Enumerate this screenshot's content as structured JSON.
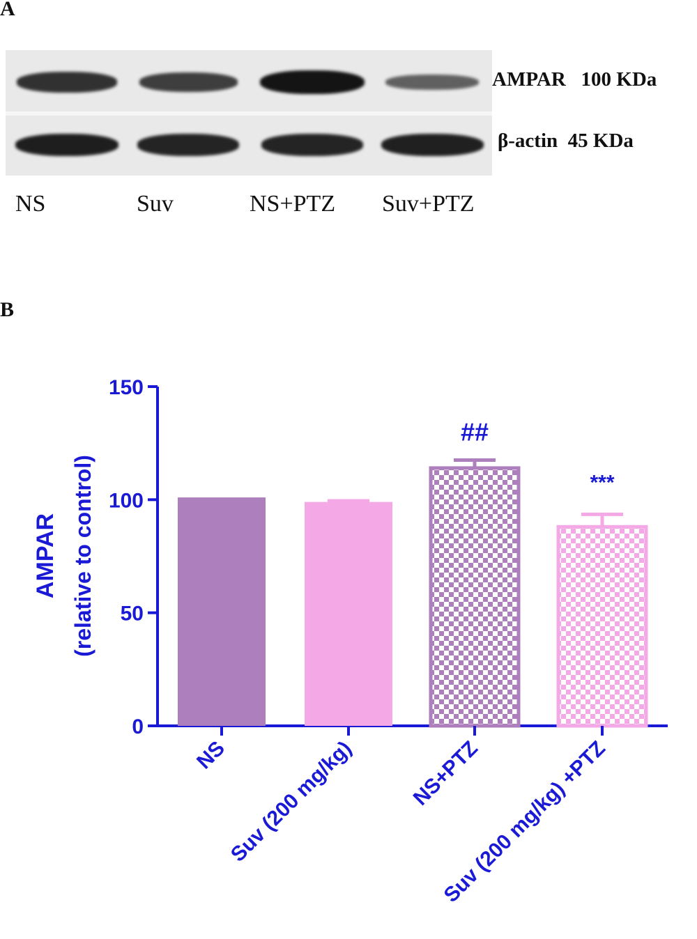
{
  "panel_a": {
    "letter": "A",
    "rows": [
      {
        "label": "AMPAR",
        "size": "100 KDa",
        "intensities": [
          0.78,
          0.7,
          1.0,
          0.45
        ]
      },
      {
        "label": "β-actin",
        "size": "45 KDa",
        "intensities": [
          0.92,
          0.88,
          0.88,
          0.9
        ]
      }
    ],
    "lanes": [
      "NS",
      "Suv",
      "NS+PTZ",
      "Suv+PTZ"
    ]
  },
  "panel_b": {
    "letter": "B"
  },
  "colors": {
    "axis": "#1a1ad6",
    "ns": "#ad7fbd",
    "suv": "#f5a8e6",
    "ns_ptz_check": "#ad7fbd",
    "suv_ptz_check": "#f5a8e6"
  },
  "chart_data": {
    "type": "bar",
    "categories": [
      "NS",
      "Suv (200 mg/kg)",
      "NS+PTZ",
      "Suv (200 mg/kg) +PTZ"
    ],
    "values": [
      101,
      99,
      114,
      88
    ],
    "errors": [
      0,
      0.5,
      3.5,
      5.5
    ],
    "patterns": [
      "solid",
      "solid",
      "checker",
      "checker"
    ],
    "annotations": [
      "",
      "",
      "##",
      "***"
    ],
    "title": "",
    "xlabel": "",
    "ylabel": "AMPAR",
    "ylabel2": "(relative to control)",
    "ylim": [
      0,
      150
    ],
    "yticks": [
      0,
      50,
      100,
      150
    ],
    "grid": false
  }
}
